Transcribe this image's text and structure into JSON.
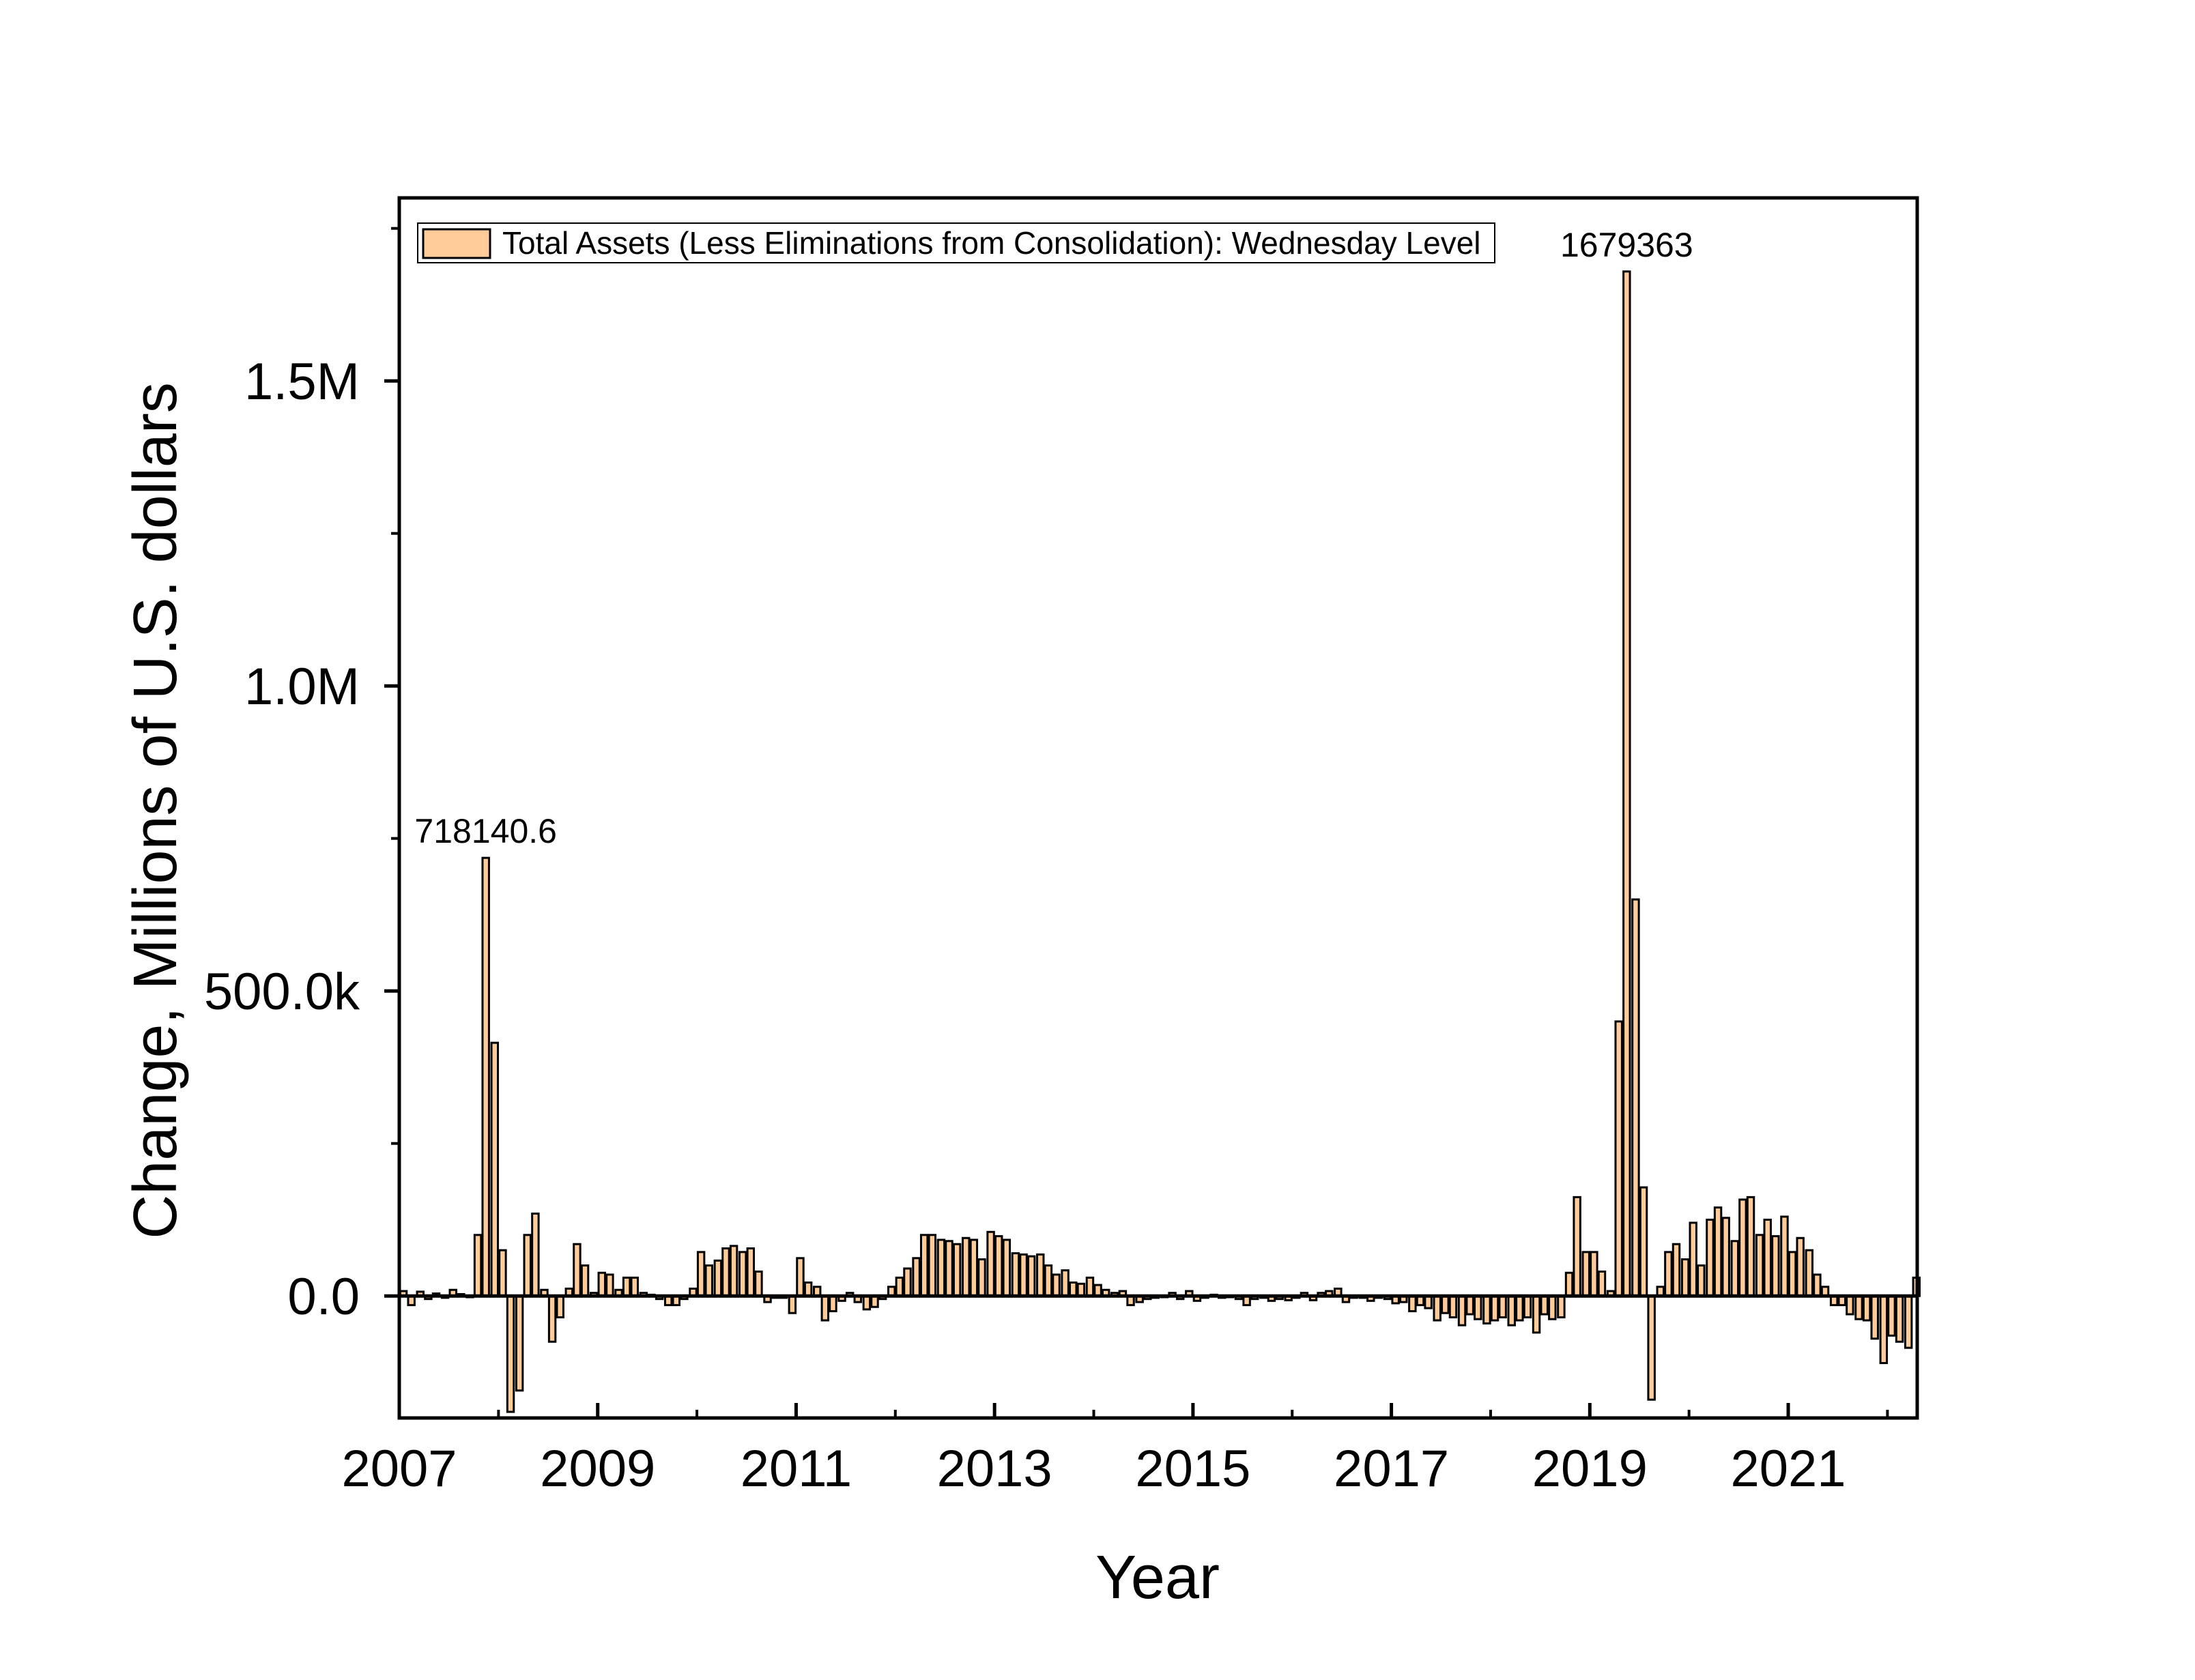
{
  "chart_data": {
    "type": "bar",
    "xlabel": "Year",
    "ylabel": "Change, Millions of U.S. dollars",
    "xlim": [
      2007.0,
      2022.3
    ],
    "ylim": [
      -200000,
      1800000
    ],
    "x_ticks": [
      2007,
      2009,
      2011,
      2013,
      2015,
      2017,
      2019,
      2021
    ],
    "x_tick_labels": [
      "2007",
      "2009",
      "2011",
      "2013",
      "2015",
      "2017",
      "2019",
      "2021"
    ],
    "y_ticks": [
      0,
      500000,
      1000000,
      1500000
    ],
    "y_tick_labels": [
      "0.0",
      "500.0k",
      "1.0M",
      "1.5M"
    ],
    "legend": {
      "position": "top-left",
      "label": "Total Assets (Less Eliminations from Consolidation): Wednesday Level"
    },
    "annotations": [
      {
        "text": "718140.6",
        "x": 2007.83,
        "y": 718140.6
      },
      {
        "text": "1679363",
        "x": 2019.33,
        "y": 1679363
      }
    ],
    "colors": {
      "bar_fill": "#FFCC99",
      "bar_stroke": "#000000"
    },
    "series": [
      {
        "name": "Total Assets (Less Eliminations from Consolidation): Wednesday Level",
        "bar_width_years": 0.0833,
        "x": [
          2007.0,
          2007.08,
          2007.17,
          2007.25,
          2007.33,
          2007.42,
          2007.5,
          2007.58,
          2007.67,
          2007.75,
          2007.83,
          2007.92,
          2008.0,
          2008.08,
          2008.17,
          2008.25,
          2008.33,
          2008.42,
          2008.5,
          2008.58,
          2008.67,
          2008.75,
          2008.83,
          2008.92,
          2009.0,
          2009.08,
          2009.17,
          2009.25,
          2009.33,
          2009.42,
          2009.5,
          2009.58,
          2009.67,
          2009.75,
          2009.83,
          2009.92,
          2010.0,
          2010.08,
          2010.17,
          2010.25,
          2010.33,
          2010.42,
          2010.5,
          2010.58,
          2010.67,
          2010.75,
          2010.83,
          2010.92,
          2011.0,
          2011.08,
          2011.17,
          2011.25,
          2011.33,
          2011.42,
          2011.5,
          2011.58,
          2011.67,
          2011.75,
          2011.83,
          2011.92,
          2012.0,
          2012.08,
          2012.17,
          2012.25,
          2012.33,
          2012.42,
          2012.5,
          2012.58,
          2012.67,
          2012.75,
          2012.83,
          2012.92,
          2013.0,
          2013.08,
          2013.17,
          2013.25,
          2013.33,
          2013.42,
          2013.5,
          2013.58,
          2013.67,
          2013.75,
          2013.83,
          2013.92,
          2014.0,
          2014.08,
          2014.17,
          2014.25,
          2014.33,
          2014.42,
          2014.5,
          2014.58,
          2014.67,
          2014.75,
          2014.83,
          2014.92,
          2015.0,
          2015.08,
          2015.17,
          2015.25,
          2015.33,
          2015.42,
          2015.5,
          2015.58,
          2015.67,
          2015.75,
          2015.83,
          2015.92,
          2016.0,
          2016.08,
          2016.17,
          2016.25,
          2016.33,
          2016.42,
          2016.5,
          2016.58,
          2016.67,
          2016.75,
          2016.83,
          2016.92,
          2017.0,
          2017.08,
          2017.17,
          2017.25,
          2017.33,
          2017.42,
          2017.5,
          2017.58,
          2017.67,
          2017.75,
          2017.83,
          2017.92,
          2018.0,
          2018.08,
          2018.17,
          2018.25,
          2018.33,
          2018.42,
          2018.5,
          2018.58,
          2018.67,
          2018.75,
          2018.83,
          2018.92,
          2019.0,
          2019.08,
          2019.17,
          2019.25,
          2019.33,
          2019.42,
          2019.5,
          2019.58,
          2019.67,
          2019.75,
          2019.83,
          2019.92,
          2020.0,
          2020.08,
          2020.17,
          2020.25,
          2020.33,
          2020.42,
          2020.5,
          2020.58,
          2020.67,
          2020.75,
          2020.83,
          2020.92,
          2021.0,
          2021.08,
          2021.17,
          2021.25,
          2021.33,
          2021.42,
          2021.5,
          2021.58,
          2021.67,
          2021.75,
          2021.83,
          2021.92,
          2022.0,
          2022.08,
          2022.17,
          2022.25
        ],
        "values": [
          8000,
          -15000,
          7000,
          -5000,
          4000,
          -3000,
          10000,
          3000,
          -2000,
          100000,
          718140.6,
          415000,
          75000,
          -190000,
          -155000,
          100000,
          135000,
          10000,
          -75000,
          -35000,
          12000,
          85000,
          50000,
          5000,
          38000,
          35000,
          10000,
          30000,
          30000,
          5000,
          2000,
          -5000,
          -15000,
          -15000,
          -5000,
          12000,
          72000,
          50000,
          58000,
          78000,
          82000,
          72000,
          78000,
          40000,
          -10000,
          -3000,
          -3000,
          -28000,
          62000,
          22000,
          15000,
          -40000,
          -25000,
          -8000,
          5000,
          -10000,
          -22000,
          -18000,
          -5000,
          15000,
          30000,
          45000,
          62000,
          100000,
          100000,
          92000,
          90000,
          85000,
          95000,
          92000,
          60000,
          105000,
          98000,
          92000,
          70000,
          68000,
          65000,
          68000,
          50000,
          35000,
          42000,
          22000,
          20000,
          30000,
          18000,
          10000,
          5000,
          8000,
          -15000,
          -10000,
          -5000,
          -3000,
          -2000,
          5000,
          -5000,
          8000,
          -8000,
          -3000,
          2000,
          -3000,
          -2000,
          -5000,
          -15000,
          -5000,
          -3000,
          -8000,
          -5000,
          -7000,
          -3000,
          5000,
          -7000,
          5000,
          8000,
          12000,
          -10000,
          -3000,
          -3000,
          -8000,
          -3000,
          -5000,
          -12000,
          -10000,
          -25000,
          -15000,
          -20000,
          -40000,
          -28000,
          -35000,
          -48000,
          -30000,
          -38000,
          -45000,
          -40000,
          -35000,
          -48000,
          -40000,
          -35000,
          -60000,
          -30000,
          -38000,
          -35000,
          38000,
          162000,
          72000,
          72000,
          40000,
          8000,
          450000,
          1679363,
          650000,
          178000,
          -170000,
          15000,
          72000,
          85000,
          60000,
          120000,
          50000,
          125000,
          145000,
          128000,
          90000,
          158000,
          162000,
          100000,
          125000,
          98000,
          130000,
          72000,
          95000,
          75000,
          35000,
          15000,
          -15000,
          -15000,
          -30000,
          -38000,
          -40000,
          -70000,
          -110000,
          -65000,
          -75000,
          -85000,
          30000
        ]
      }
    ]
  }
}
